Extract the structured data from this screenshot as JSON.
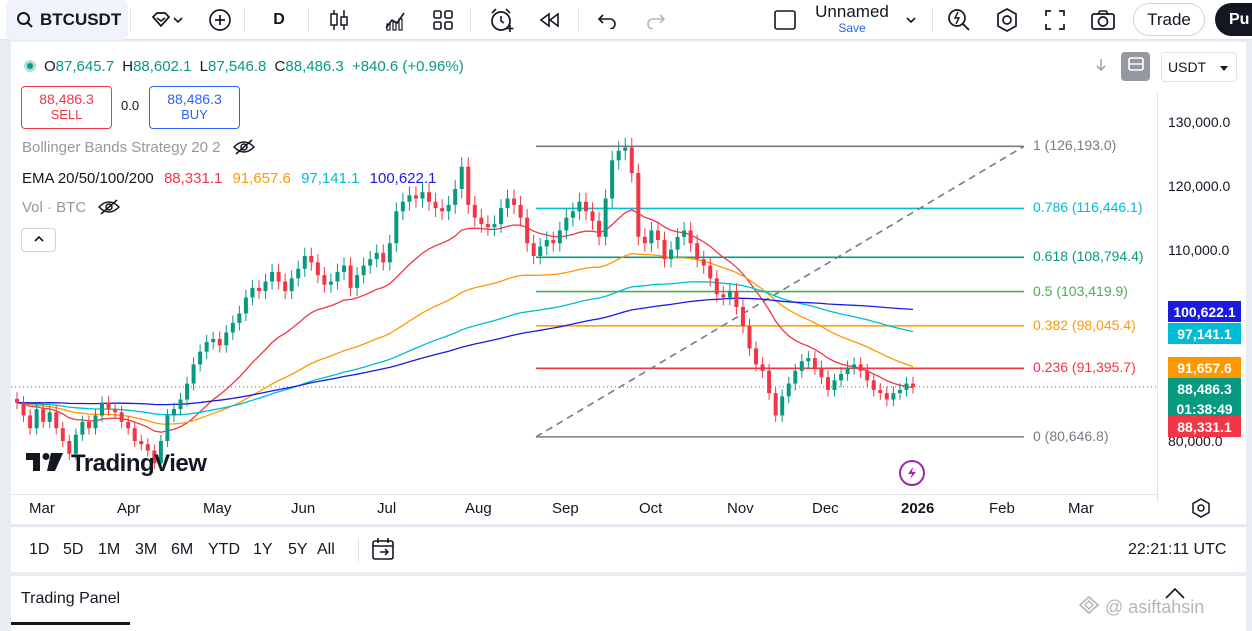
{
  "toolbar": {
    "symbol": "BTCUSDT",
    "interval": "D",
    "layout_name": "Unnamed",
    "layout_status": "Save",
    "trade_label": "Trade",
    "publish_label": "Pu",
    "icons": [
      "search-icon",
      "diamond-icon",
      "plus-circle-icon",
      "candles-icon",
      "indicators-icon",
      "grid-icon",
      "alert-clock-icon",
      "replay-icon",
      "undo-icon",
      "redo-icon",
      "checkbox-icon",
      "chevron-down-icon",
      "zoom-flash-icon",
      "settings-icon",
      "fullscreen-icon",
      "camera-icon"
    ]
  },
  "legend": {
    "ohlc": {
      "o_label": "O",
      "o": "87,645.7",
      "h_label": "H",
      "h": "88,602.1",
      "l_label": "L",
      "l": "87,546.8",
      "c_label": "C",
      "c": "88,486.3",
      "change": "+840.6 (+0.96%)"
    },
    "sell": {
      "price": "88,486.3",
      "label": "SELL"
    },
    "spread": "0.0",
    "buy": {
      "price": "88,486.3",
      "label": "BUY"
    },
    "bb_title": "Bollinger Bands Strategy 20 2",
    "ema_title": "EMA 20/50/100/200",
    "ema_values": [
      {
        "value": "88,331.1",
        "color": "#f23645"
      },
      {
        "value": "91,657.6",
        "color": "#ff9800"
      },
      {
        "value": "97,141.1",
        "color": "#00bcd4"
      },
      {
        "value": "100,622.1",
        "color": "#1a1ae0"
      }
    ],
    "vol_title": "Vol · BTC",
    "currency": "USDT"
  },
  "price_axis": {
    "ticks": [
      {
        "label": "130,000.0",
        "price": 130000
      },
      {
        "label": "120,000.0",
        "price": 120000
      },
      {
        "label": "110,000.0",
        "price": 110000
      },
      {
        "label": "80,000.0",
        "price": 80000
      }
    ],
    "tags": [
      {
        "label": "100,622.1",
        "price": 100622.1,
        "color": "#1a1ae0"
      },
      {
        "label": "97,141.1",
        "price": 97141.1,
        "color": "#00bcd4"
      },
      {
        "label": "91,657.6",
        "price": 91657.6,
        "color": "#ff9800"
      },
      {
        "label": "88,486.3",
        "price": 88486.3,
        "color": "#089981"
      },
      {
        "label": "01:38:49",
        "price": null,
        "color": "#089981"
      },
      {
        "label": "88,331.1",
        "price": 88331.1,
        "color": "#f23645"
      }
    ]
  },
  "time_axis": {
    "labels": [
      "Mar",
      "Apr",
      "May",
      "Jun",
      "Jul",
      "Aug",
      "Sep",
      "Oct",
      "Nov",
      "Dec",
      "2026",
      "Feb",
      "Mar"
    ]
  },
  "fib": {
    "levels": [
      {
        "ratio": "1",
        "price": 126193.0,
        "label": "1 (126,193.0)",
        "color": "#787b86"
      },
      {
        "ratio": "0.786",
        "price": 116446.1,
        "label": "0.786 (116,446.1)",
        "color": "#00bcd4"
      },
      {
        "ratio": "0.618",
        "price": 108794.4,
        "label": "0.618 (108,794.4)",
        "color": "#089981"
      },
      {
        "ratio": "0.5",
        "price": 103419.9,
        "label": "0.5 (103,419.9)",
        "color": "#4caf50"
      },
      {
        "ratio": "0.382",
        "price": 98045.4,
        "label": "0.382 (98,045.4)",
        "color": "#ff9800"
      },
      {
        "ratio": "0.236",
        "price": 91395.7,
        "label": "0.236 (91,395.7)",
        "color": "#f23645"
      },
      {
        "ratio": "0",
        "price": 80646.8,
        "label": "0 (80,646.8)",
        "color": "#787b86"
      }
    ]
  },
  "logo_text": "TradingView",
  "ranges": [
    "1D",
    "5D",
    "1M",
    "3M",
    "6M",
    "YTD",
    "1Y",
    "5Y",
    "All"
  ],
  "clock": "22:21:11 UTC",
  "trading_panel_label": "Trading Panel",
  "watermark": "@ asiftahsin",
  "chart_data": {
    "type": "candlestick",
    "y_range": [
      79000,
      132000
    ],
    "series": [
      {
        "name": "price (daily close, approx.)",
        "values": [
          86000,
          84000,
          82000,
          85000,
          83000,
          84500,
          82000,
          80000,
          78000,
          81000,
          83000,
          82000,
          84000,
          86000,
          85000,
          84500,
          83000,
          82000,
          80000,
          79500,
          78500,
          76500,
          80000,
          84000,
          85000,
          86500,
          89000,
          92000,
          94000,
          95500,
          96000,
          95000,
          97000,
          98500,
          100000,
          102500,
          104000,
          103500,
          105000,
          106500,
          105000,
          103500,
          105500,
          107000,
          109000,
          108000,
          106000,
          104500,
          105000,
          106500,
          107500,
          104000,
          106000,
          107500,
          108500,
          109500,
          108000,
          111000,
          116000,
          117500,
          118500,
          118000,
          119000,
          117500,
          116500,
          116000,
          117000,
          119500,
          123000,
          117000,
          115000,
          114000,
          113500,
          114000,
          116500,
          118000,
          117000,
          115000,
          111000,
          109000,
          110500,
          111500,
          111000,
          113000,
          115000,
          116000,
          117500,
          116000,
          114500,
          112000,
          118000,
          124000,
          125500,
          126000,
          122000,
          112000,
          111000,
          113000,
          111500,
          108500,
          110000,
          112000,
          113000,
          111000,
          108500,
          107500,
          105500,
          103000,
          102500,
          103500,
          101000,
          98000,
          94500,
          92000,
          91000,
          87500,
          84000,
          87000,
          89000,
          91000,
          92500,
          93000,
          91500,
          90000,
          88000,
          89500,
          90500,
          91500,
          92000,
          91000,
          89500,
          88000,
          87500,
          86500,
          87500,
          88000,
          89000,
          88486
        ]
      }
    ],
    "ema": [
      {
        "name": "EMA 20",
        "last": 88331.1
      },
      {
        "name": "EMA 50",
        "last": 91657.6
      },
      {
        "name": "EMA 100",
        "last": 97141.1
      },
      {
        "name": "EMA 200",
        "last": 100622.1
      }
    ]
  }
}
